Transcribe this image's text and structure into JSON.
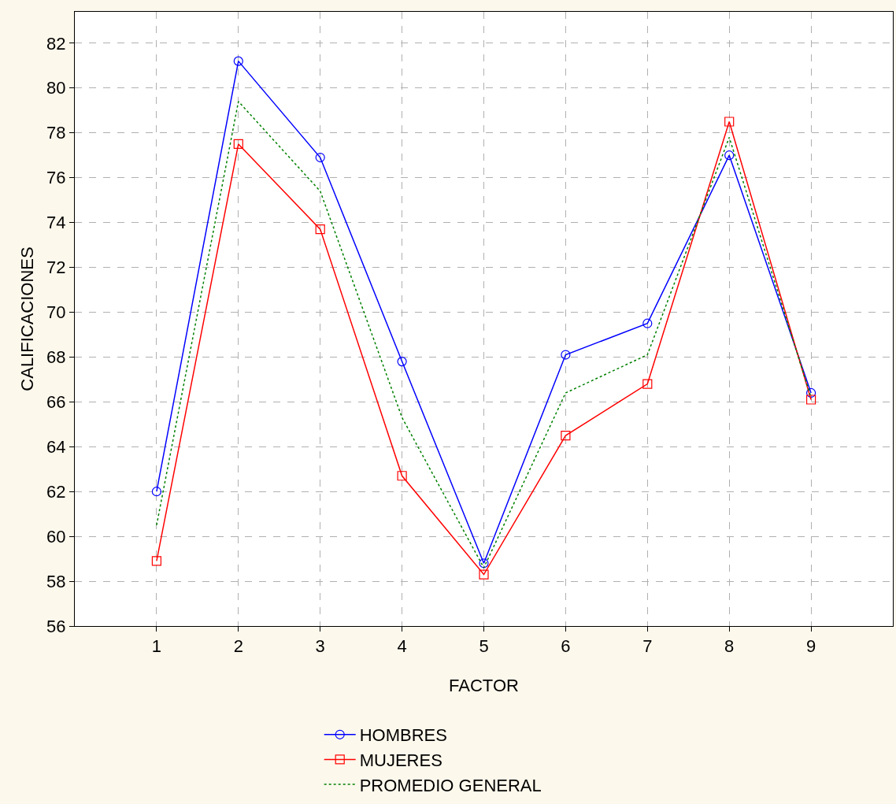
{
  "chart_data": {
    "type": "line",
    "xlabel": "FACTOR",
    "ylabel": "CALIFICACIONES",
    "x": [
      1,
      2,
      3,
      4,
      5,
      6,
      7,
      8,
      9
    ],
    "series": [
      {
        "name": "HOMBRES",
        "color": "#0000ff",
        "marker": "circle",
        "line_style": "solid",
        "values": [
          62.0,
          81.2,
          76.9,
          67.8,
          58.8,
          68.1,
          69.5,
          77.0,
          66.4
        ]
      },
      {
        "name": "MUJERES",
        "color": "#ff0000",
        "marker": "square",
        "line_style": "solid",
        "values": [
          58.9,
          77.5,
          73.7,
          62.7,
          58.3,
          64.5,
          66.8,
          78.5,
          66.1
        ]
      },
      {
        "name": "PROMEDIO GENERAL",
        "color": "#008000",
        "marker": "none",
        "line_style": "dotted",
        "values": [
          60.5,
          79.4,
          75.4,
          65.3,
          58.6,
          66.4,
          68.1,
          77.8,
          66.2
        ]
      }
    ],
    "xlim": [
      0,
      10
    ],
    "xticks": [
      1,
      2,
      3,
      4,
      5,
      6,
      7,
      8,
      9
    ],
    "ylim": [
      56,
      83.4
    ],
    "yticks": [
      56,
      58,
      60,
      62,
      64,
      66,
      68,
      70,
      72,
      74,
      76,
      78,
      80,
      82
    ],
    "grid": true,
    "legend": "bottom"
  }
}
